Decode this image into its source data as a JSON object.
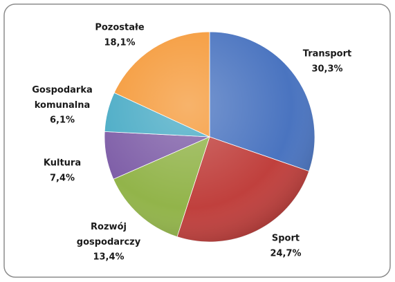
{
  "chart_data": {
    "type": "pie",
    "categories": [
      "Transport",
      "Sport",
      "Rozwój gospodarczy",
      "Kultura",
      "Gospodarka komunalna",
      "Pozostałe"
    ],
    "values": [
      30.3,
      24.7,
      13.4,
      7.4,
      6.1,
      18.1
    ],
    "value_labels": [
      "30,3%",
      "24,7%",
      "13,4%",
      "7,4%",
      "6,1%",
      "18,1%"
    ],
    "colors": [
      "#4a74c0",
      "#c0403d",
      "#92b44a",
      "#7f5fa8",
      "#4bacc6",
      "#f59a3a"
    ]
  }
}
